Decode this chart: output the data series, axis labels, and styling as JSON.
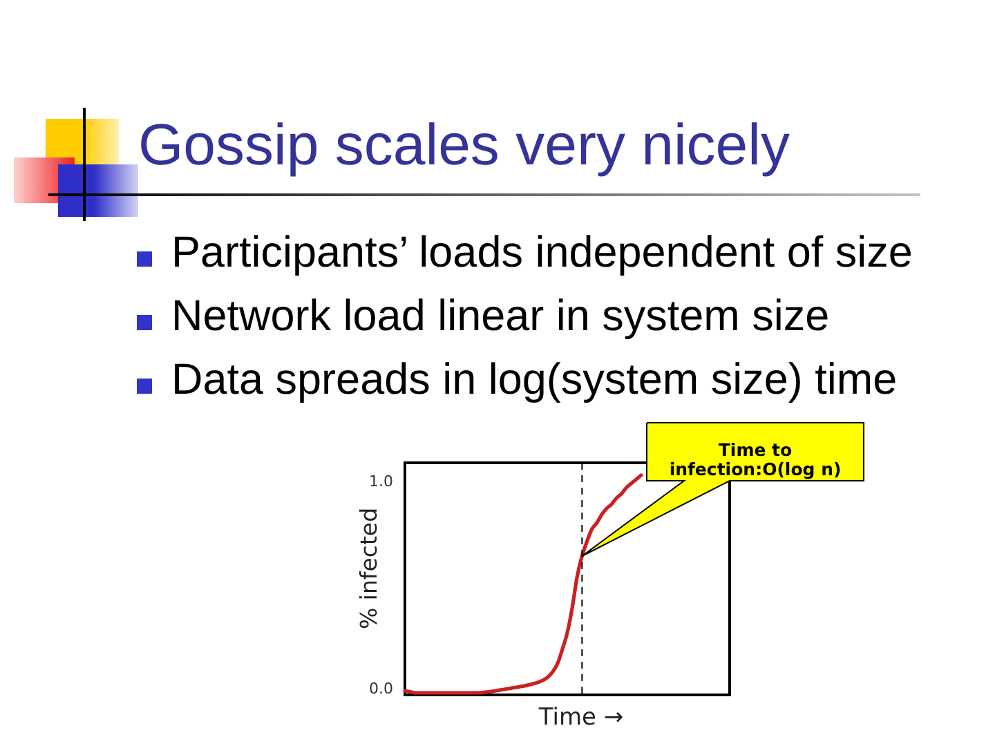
{
  "chart_data": {
    "type": "line",
    "title": "Gossip scales very nicely",
    "annotations": [
      "Participants’ loads independent of size",
      "Network load linear in system size",
      "Data spreads in log(system size) time",
      "Time to\ninfection:O(log n)"
    ],
    "xlabel": "Time →",
    "ylabel": "% infected",
    "categories": [
      null,
      null,
      null,
      null,
      null,
      null,
      null,
      null,
      null,
      null,
      null,
      null,
      null,
      null,
      null,
      null,
      null,
      null,
      null,
      null,
      null,
      null,
      null,
      null,
      null,
      null,
      null,
      null,
      null,
      null,
      null,
      null,
      null,
      null,
      null,
      null,
      null,
      null,
      null,
      null,
      null,
      null,
      null,
      null,
      null,
      null,
      null,
      null,
      null,
      null,
      null,
      null,
      null,
      null,
      null,
      null,
      null,
      null,
      null,
      null,
      null,
      null,
      null,
      null,
      null,
      null,
      null
    ],
    "series": [
      {
        "color": "#cc2020",
        "values": [
          -0.01,
          -0.015,
          -0.02,
          -0.02,
          -0.02,
          -0.02,
          -0.02,
          -0.02,
          -0.02,
          -0.02,
          -0.02,
          -0.02,
          -0.02,
          -0.02,
          -0.02,
          -0.02,
          -0.018,
          -0.015,
          -0.012,
          -0.008,
          -0.004,
          0.0,
          0.004,
          0.008,
          0.012,
          0.017,
          0.023,
          0.03,
          0.04,
          0.055,
          0.08,
          0.12,
          0.19,
          0.27,
          0.39,
          0.54,
          0.64,
          0.71,
          0.77,
          0.8,
          0.84,
          0.87,
          0.89,
          0.92,
          0.94,
          0.97,
          0.99,
          1.01,
          1.03,
          null,
          null,
          null,
          null,
          null,
          null,
          null,
          null,
          null,
          null,
          null,
          null,
          null,
          null,
          null,
          null,
          null,
          null
        ]
      }
    ],
    "ylim": [
      -0.03,
      1.09
    ],
    "yticks": [
      {
        "value": 0,
        "label": "0.0"
      },
      {
        "value": 1,
        "label": "1.0"
      }
    ],
    "tick_labels": "y"
  }
}
